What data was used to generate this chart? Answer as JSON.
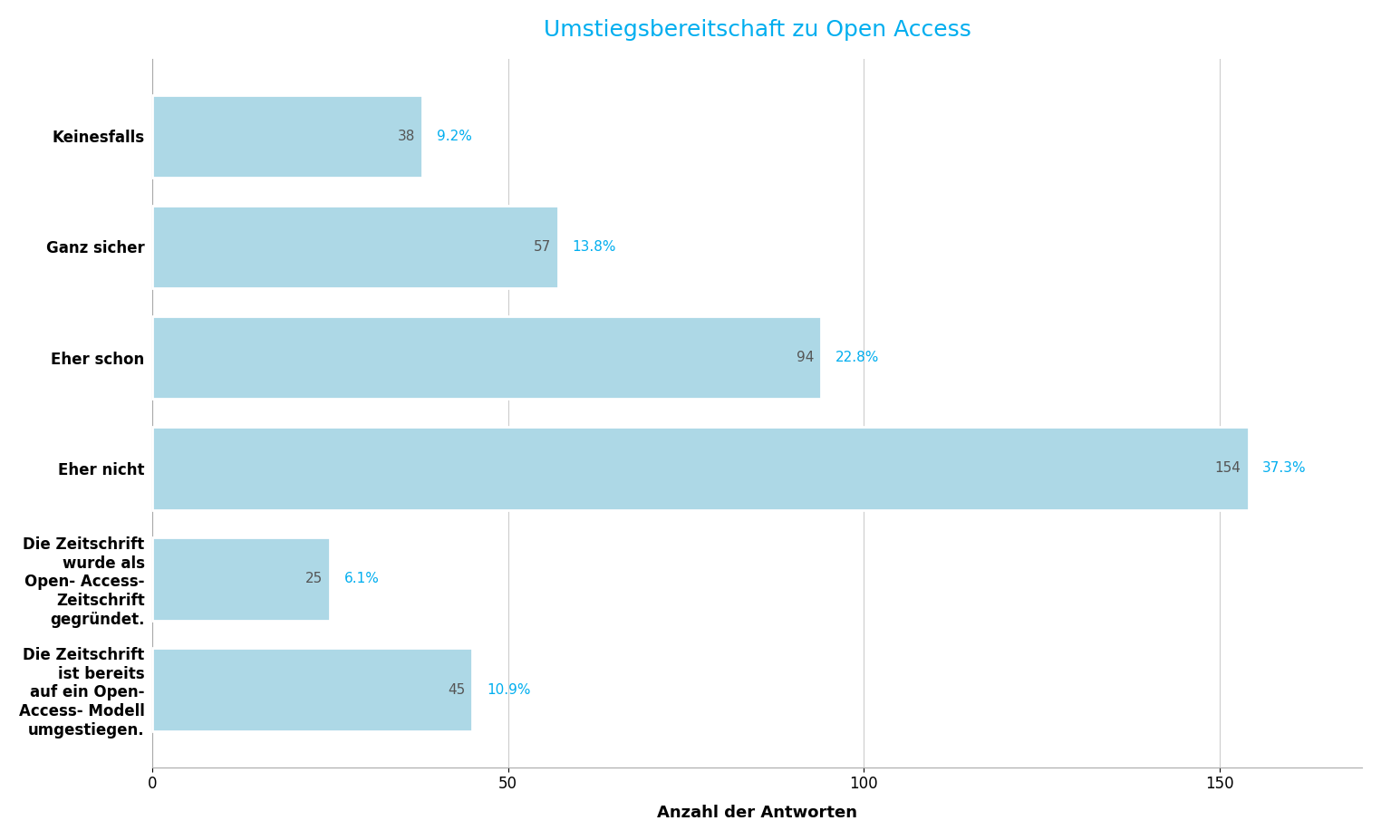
{
  "title": "Umstiegsbereitschaft zu Open Access",
  "xlabel": "Anzahl der Antworten",
  "categories": [
    "Keinesfalls",
    "Ganz sicher",
    "Eher schon",
    "Eher nicht",
    "Die Zeitschrift\nwurde als\nOpen- Access-\nZeitschrift\ngegründet.",
    "Die Zeitschrift\nist bereits\nauf ein Open-\nAccess- Modell\numgestiegen."
  ],
  "values": [
    38,
    57,
    94,
    154,
    25,
    45
  ],
  "percentages": [
    "9.2%",
    "13.8%",
    "22.8%",
    "37.3%",
    "6.1%",
    "10.9%"
  ],
  "bar_color": "#ADD8E6",
  "bar_edge_color": "white",
  "title_color": "#00AEEF",
  "label_color_count": "#555555",
  "label_color_pct": "#00AEEF",
  "background_color": "#ffffff",
  "grid_color": "#cccccc",
  "xlim": [
    0,
    170
  ],
  "xticks": [
    0,
    50,
    100,
    150
  ],
  "title_fontsize": 18,
  "axis_label_fontsize": 13,
  "tick_fontsize": 12,
  "bar_label_fontsize": 11,
  "category_fontsize": 12,
  "bar_height": 0.75
}
